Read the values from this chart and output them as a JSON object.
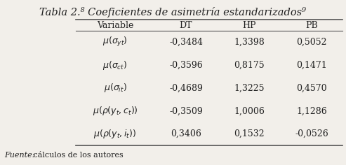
{
  "title_plain": "Tabla 2.",
  "title_super": "8",
  "title_italic": " Coeficientes de asimetría estandarizados",
  "title_super2": "9",
  "columns": [
    "Variable",
    "DT",
    "HP",
    "PB"
  ],
  "row_labels": [
    "$\\mu(\\sigma_{yt})$",
    "$\\mu(\\sigma_{ct})$",
    "$\\mu(\\sigma_{it})$",
    "$\\mu(\\rho(y_t,c_t))$",
    "$\\mu(\\rho(y_t,i_t))$"
  ],
  "data": [
    [
      "-0,3484",
      "1,3398",
      "0,5052"
    ],
    [
      "-0,3596",
      "0,8175",
      "0,1471"
    ],
    [
      "-0,4689",
      "1,3225",
      "0,4570"
    ],
    [
      "-0,3509",
      "1,0006",
      "1,1286"
    ],
    [
      "0,3406",
      "0,1532",
      "-0,0526"
    ]
  ],
  "footer_italic": "Fuente:",
  "footer_plain": " cálculos de los autores",
  "bg_color": "#f2efea",
  "line_color": "#555555",
  "text_color": "#222222",
  "figsize": [
    4.93,
    2.36
  ],
  "dpi": 100
}
